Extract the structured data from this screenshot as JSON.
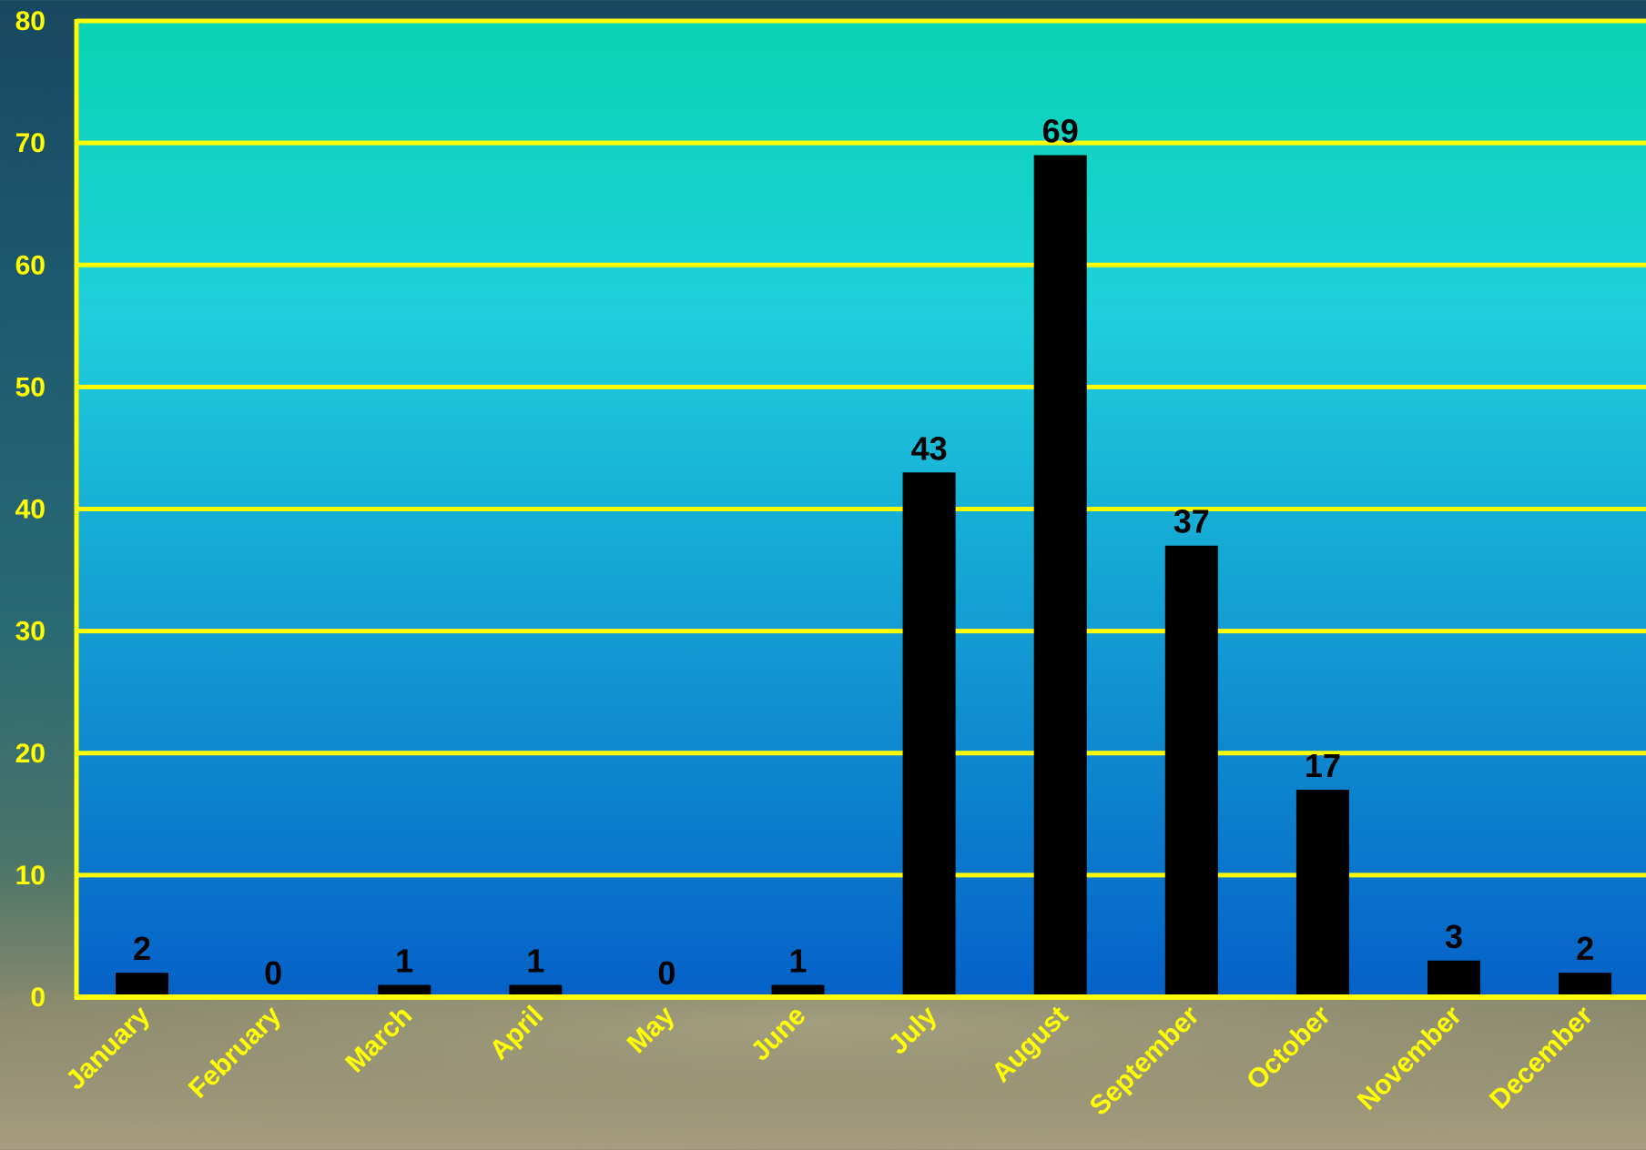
{
  "chart_data": {
    "type": "bar",
    "categories": [
      "January",
      "February",
      "March",
      "April",
      "May",
      "June",
      "July",
      "August",
      "September",
      "October",
      "November",
      "December"
    ],
    "values": [
      2,
      0,
      1,
      1,
      0,
      1,
      43,
      69,
      37,
      17,
      3,
      2
    ],
    "title": "",
    "xlabel": "",
    "ylabel": "",
    "ylim": [
      0,
      80
    ],
    "yticks": [
      0,
      10,
      20,
      30,
      40,
      50,
      60,
      70,
      80
    ],
    "grid": true,
    "legend": "none",
    "show_data_labels": true
  },
  "colors": {
    "bar": "#000000",
    "grid": "#ffff00",
    "axis_labels": "#ffff00",
    "data_labels": "#000000",
    "plot_top": "#09d4b2",
    "plot_mid": "#1fcfdc",
    "plot_bottom": "#0561c8"
  }
}
